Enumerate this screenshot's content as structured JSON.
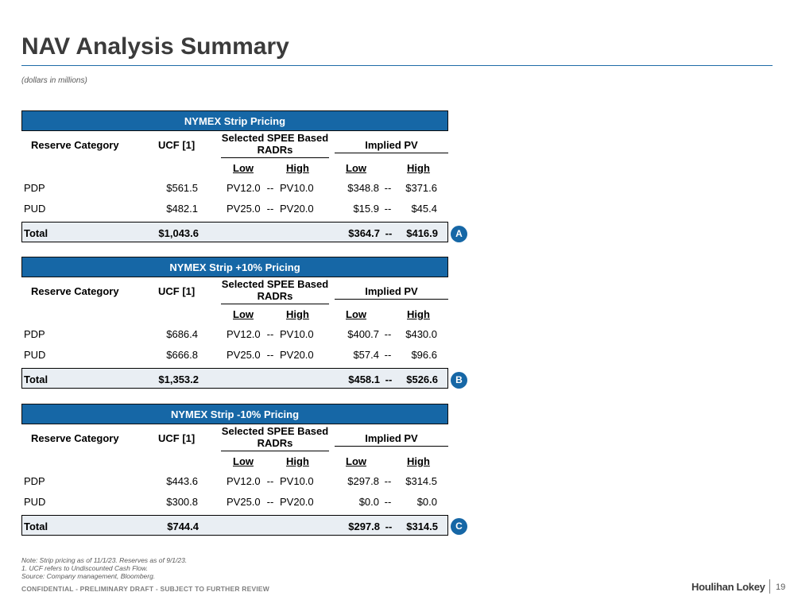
{
  "page": {
    "title": "NAV Analysis Summary",
    "subtitle": "(dollars in millions)"
  },
  "tables": [
    {
      "heading": "NYMEX Strip Pricing",
      "col_reserve": "Reserve Category",
      "col_ucf": "UCF [1]",
      "col_radr": "Selected SPEE Based RADRs",
      "col_pv": "Implied PV",
      "radr_low": "Low",
      "radr_high": "High",
      "pv_low": "Low",
      "pv_high": "High",
      "rows": [
        {
          "category": "PDP",
          "ucf": "$561.5",
          "radr_low": "PV12.0",
          "sep1": "--",
          "radr_high": "PV10.0",
          "pv_low": "$348.8",
          "sep2": "--",
          "pv_high": "$371.6"
        },
        {
          "category": "PUD",
          "ucf": "$482.1",
          "radr_low": "PV25.0",
          "sep1": "--",
          "radr_high": "PV20.0",
          "pv_low": "$15.9",
          "sep2": "--",
          "pv_high": "$45.4"
        }
      ],
      "total": {
        "label": "Total",
        "ucf": "$1,043.6",
        "pv_low": "$364.7",
        "sep": "--",
        "pv_high": "$416.9"
      },
      "badge": "A"
    },
    {
      "heading": "NYMEX Strip +10% Pricing",
      "col_reserve": "Reserve Category",
      "col_ucf": "UCF [1]",
      "col_radr": "Selected SPEE Based RADRs",
      "col_pv": "Implied PV",
      "radr_low": "Low",
      "radr_high": "High",
      "pv_low": "Low",
      "pv_high": "High",
      "rows": [
        {
          "category": "PDP",
          "ucf": "$686.4",
          "radr_low": "PV12.0",
          "sep1": "--",
          "radr_high": "PV10.0",
          "pv_low": "$400.7",
          "sep2": "--",
          "pv_high": "$430.0"
        },
        {
          "category": "PUD",
          "ucf": "$666.8",
          "radr_low": "PV25.0",
          "sep1": "--",
          "radr_high": "PV20.0",
          "pv_low": "$57.4",
          "sep2": "--",
          "pv_high": "$96.6"
        }
      ],
      "total": {
        "label": "Total",
        "ucf": "$1,353.2",
        "pv_low": "$458.1",
        "sep": "--",
        "pv_high": "$526.6"
      },
      "badge": "B"
    },
    {
      "heading": "NYMEX Strip -10% Pricing",
      "col_reserve": "Reserve Category",
      "col_ucf": "UCF [1]",
      "col_radr": "Selected SPEE Based RADRs",
      "col_pv": "Implied PV",
      "radr_low": "Low",
      "radr_high": "High",
      "pv_low": "Low",
      "pv_high": "High",
      "rows": [
        {
          "category": "PDP",
          "ucf": "$443.6",
          "radr_low": "PV12.0",
          "sep1": "--",
          "radr_high": "PV10.0",
          "pv_low": "$297.8",
          "sep2": "--",
          "pv_high": "$314.5"
        },
        {
          "category": "PUD",
          "ucf": "$300.8",
          "radr_low": "PV25.0",
          "sep1": "--",
          "radr_high": "PV20.0",
          "pv_low": "$0.0",
          "sep2": "--",
          "pv_high": "$0.0"
        }
      ],
      "total": {
        "label": "Total",
        "ucf": "$744.4",
        "pv_low": "$297.8",
        "sep": "--",
        "pv_high": "$314.5"
      },
      "badge": "C"
    }
  ],
  "footer": {
    "note_1": "Note: Strip pricing as of 11/1/23. Reserves as of 9/1/23.",
    "note_2": "1. UCF refers to Undiscounted Cash Flow.",
    "note_3": "Source: Company management, Bloomberg.",
    "confidential": "CONFIDENTIAL - PRELIMINARY DRAFT - SUBJECT TO FURTHER REVIEW",
    "brand": "Houlihan Lokey",
    "page_number": "19"
  },
  "colors": {
    "header_bar": "#1667a6",
    "title_rule": "#1f6ca8",
    "total_fill": "#e9eef3"
  }
}
